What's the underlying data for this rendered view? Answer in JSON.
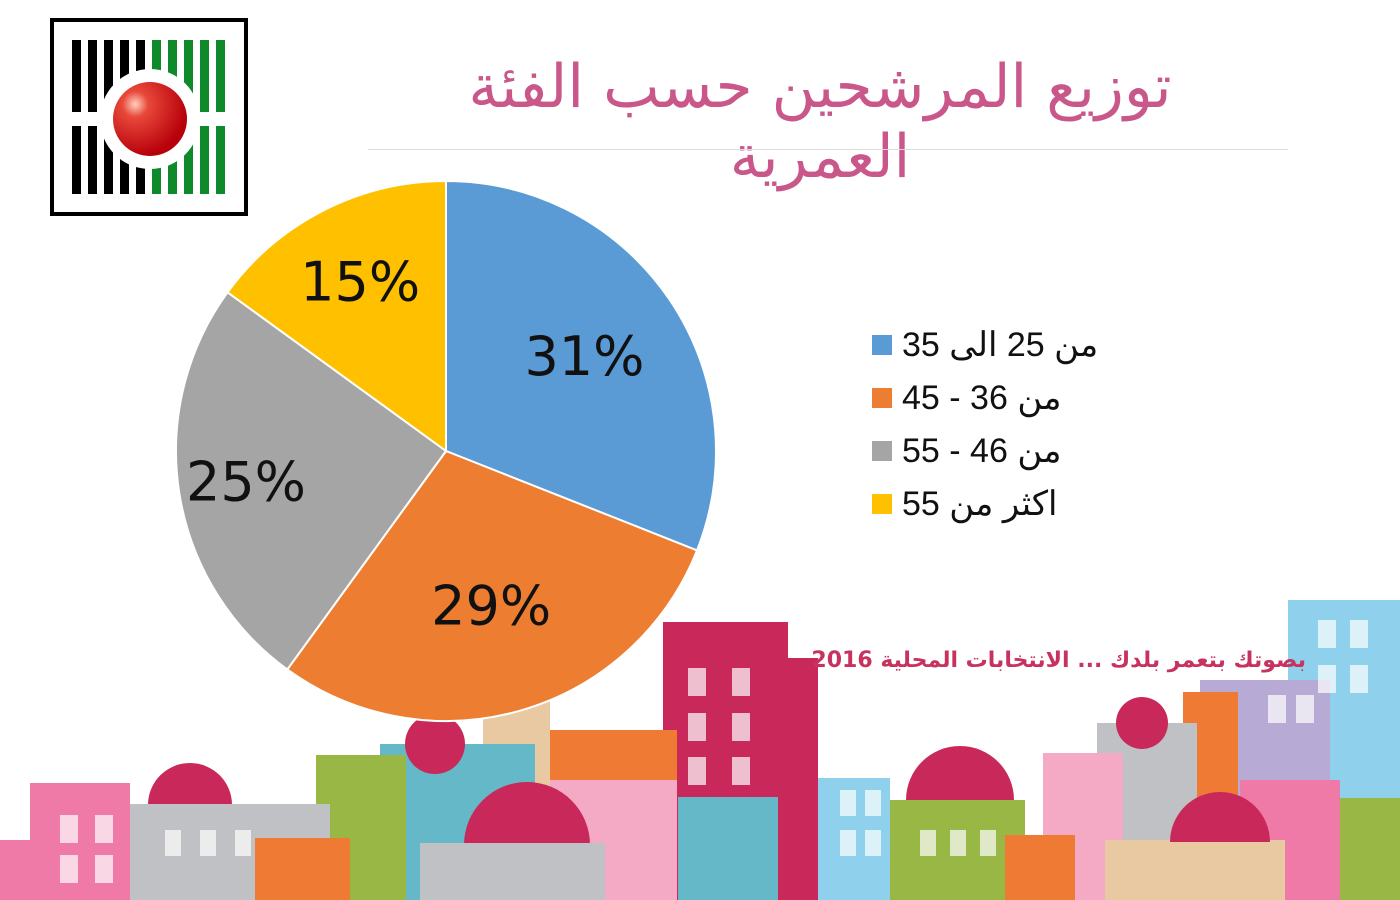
{
  "logo": {
    "name": "election-commission-logo"
  },
  "title": "توزيع المرشحين حسب الفئة العمرية",
  "tagline": "بصوتك بتعمر بلدك ...  الانتخابات المحلية 2016",
  "chart_data": {
    "type": "pie",
    "title": "توزيع المرشحين حسب الفئة العمرية",
    "categories": [
      "من 25 الى 35",
      "من 36 - 45",
      "من 46 - 55",
      "اكثر من 55"
    ],
    "values": [
      31,
      29,
      25,
      15
    ],
    "labels": [
      "31%",
      "29%",
      "25%",
      "15%"
    ],
    "colors": [
      "#5b9bd5",
      "#ed7d31",
      "#a5a5a5",
      "#ffc000"
    ],
    "start": "top",
    "direction": "clockwise",
    "legend_position": "right"
  }
}
